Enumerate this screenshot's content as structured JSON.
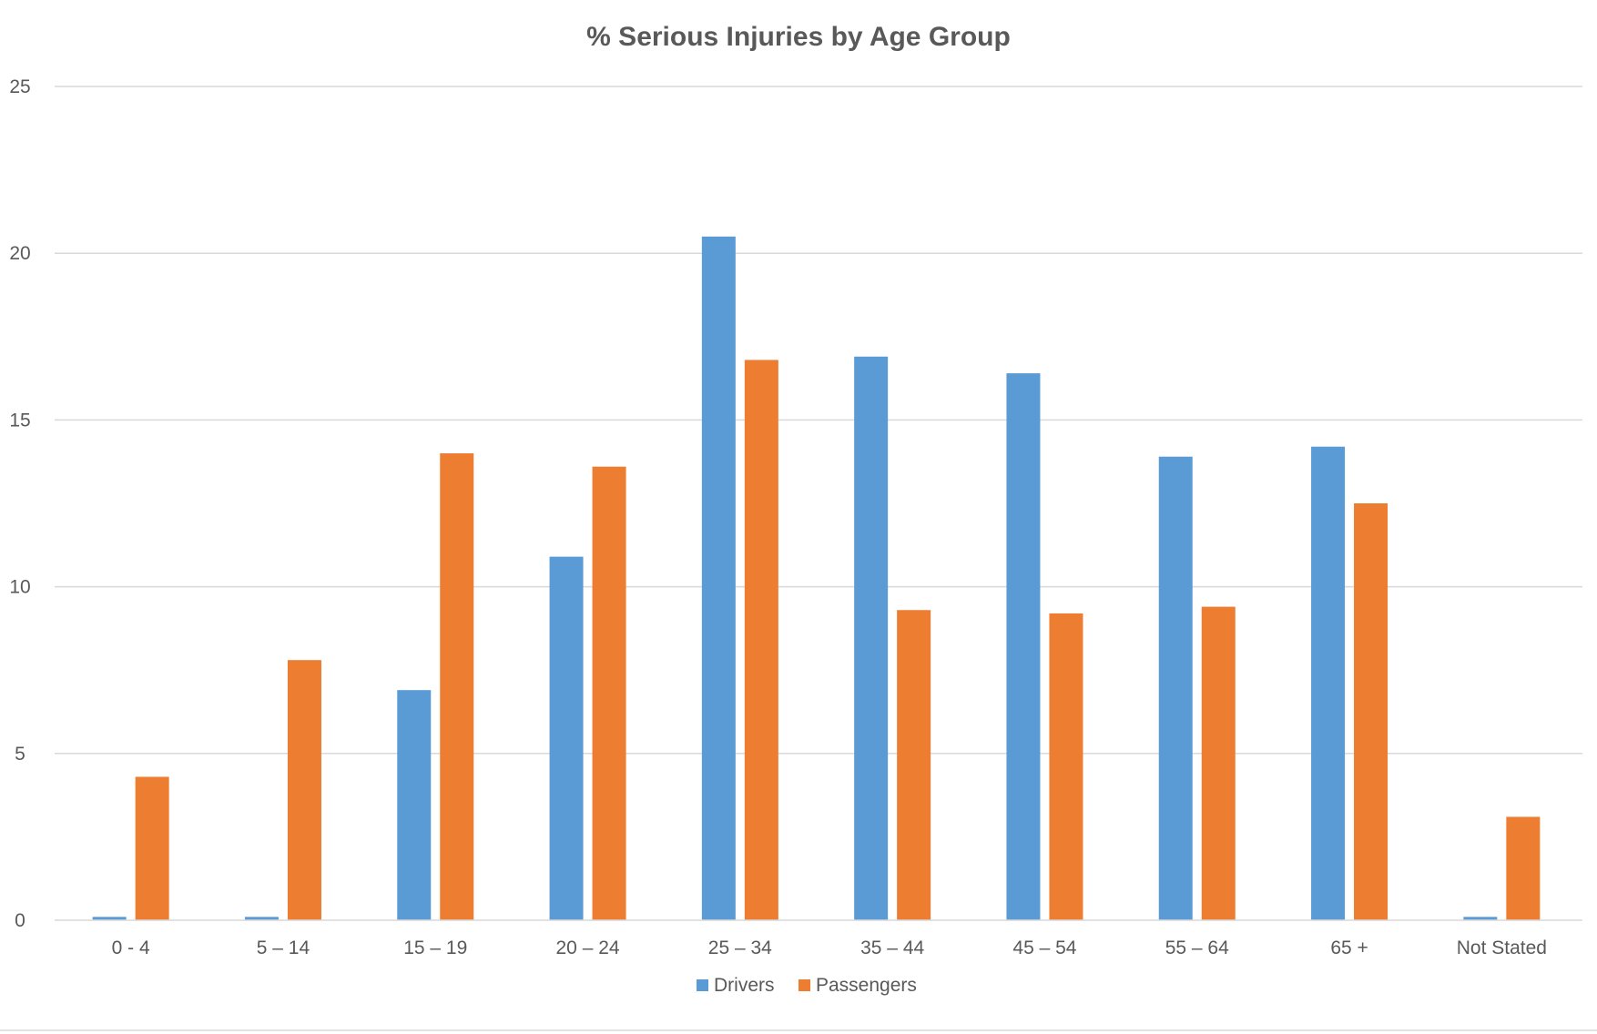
{
  "chart_data": {
    "type": "bar",
    "title": "% Serious Injuries by Age Group",
    "xlabel": "",
    "ylabel": "",
    "categories": [
      "0 - 4",
      "5 – 14",
      "15 – 19",
      "20 – 24",
      "25 – 34",
      "35 – 44",
      "45 – 54",
      "55 – 64",
      "65 +",
      "Not Stated"
    ],
    "series": [
      {
        "name": "Drivers",
        "color": "#5B9BD5",
        "values": [
          0.1,
          0.1,
          6.9,
          10.9,
          20.5,
          16.9,
          16.4,
          13.9,
          14.2,
          0.1
        ]
      },
      {
        "name": "Passengers",
        "color": "#ED7D31",
        "values": [
          4.3,
          7.8,
          14.0,
          13.6,
          16.8,
          9.3,
          9.2,
          9.4,
          12.5,
          3.1
        ]
      }
    ],
    "ylim": [
      0,
      25
    ],
    "yticks": [
      0,
      5,
      10,
      15,
      20,
      25
    ],
    "grid": true,
    "gridline_color": "#D9D9D9",
    "legend_position": "bottom"
  }
}
